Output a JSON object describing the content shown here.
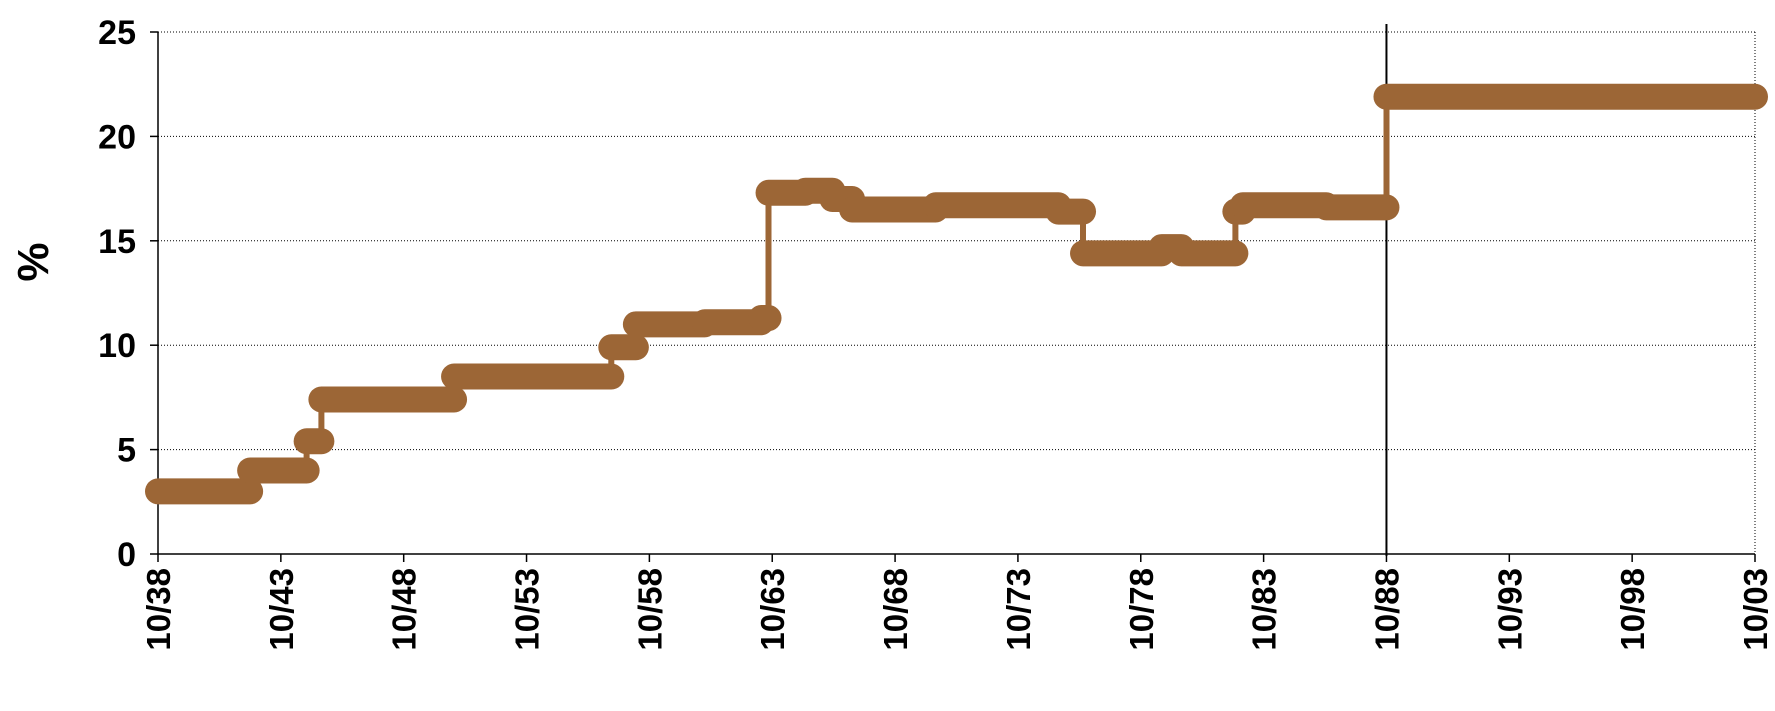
{
  "chart_data": {
    "type": "line",
    "title": "",
    "xlabel": "",
    "ylabel": "%",
    "ylim": [
      0,
      25
    ],
    "yticks": [
      "0",
      "5",
      "10",
      "15",
      "20",
      "25"
    ],
    "xticks": [
      "10/38",
      "10/43",
      "10/48",
      "10/53",
      "10/58",
      "10/63",
      "10/68",
      "10/73",
      "10/78",
      "10/83",
      "10/88",
      "10/93",
      "10/98",
      "10/03"
    ],
    "xlim": [
      1938.75,
      2003.75
    ],
    "grid": true,
    "marker_year": 1988.75,
    "colors": {
      "series": "#9C6636",
      "axis": "#000000"
    },
    "series": [
      {
        "points": [
          [
            1938.75,
            3.0
          ],
          [
            1942.5,
            3.0
          ],
          [
            1942.5,
            4.0
          ],
          [
            1944.8,
            4.0
          ],
          [
            1944.8,
            5.4
          ],
          [
            1945.4,
            5.4
          ],
          [
            1945.4,
            7.4
          ],
          [
            1950.8,
            7.4
          ],
          [
            1950.8,
            8.5
          ],
          [
            1957.2,
            8.5
          ],
          [
            1957.2,
            9.9
          ],
          [
            1958.2,
            9.9
          ],
          [
            1958.2,
            11.0
          ],
          [
            1961.0,
            11.0
          ],
          [
            1961.0,
            11.1
          ],
          [
            1963.3,
            11.1
          ],
          [
            1963.3,
            11.3
          ],
          [
            1963.6,
            11.3
          ],
          [
            1963.6,
            17.3
          ],
          [
            1965.1,
            17.3
          ],
          [
            1965.1,
            17.4
          ],
          [
            1966.2,
            17.4
          ],
          [
            1966.2,
            17.0
          ],
          [
            1967.0,
            17.0
          ],
          [
            1967.0,
            16.5
          ],
          [
            1970.4,
            16.5
          ],
          [
            1970.4,
            16.7
          ],
          [
            1975.4,
            16.7
          ],
          [
            1975.4,
            16.4
          ],
          [
            1976.4,
            16.4
          ],
          [
            1976.4,
            14.4
          ],
          [
            1979.6,
            14.4
          ],
          [
            1979.6,
            14.7
          ],
          [
            1980.4,
            14.7
          ],
          [
            1980.4,
            14.4
          ],
          [
            1982.6,
            14.4
          ],
          [
            1982.6,
            16.4
          ],
          [
            1982.9,
            16.4
          ],
          [
            1982.9,
            16.7
          ],
          [
            1986.3,
            16.7
          ],
          [
            1986.3,
            16.6
          ],
          [
            1988.75,
            16.6
          ],
          [
            1988.75,
            21.9
          ],
          [
            2003.75,
            21.9
          ]
        ]
      }
    ]
  }
}
